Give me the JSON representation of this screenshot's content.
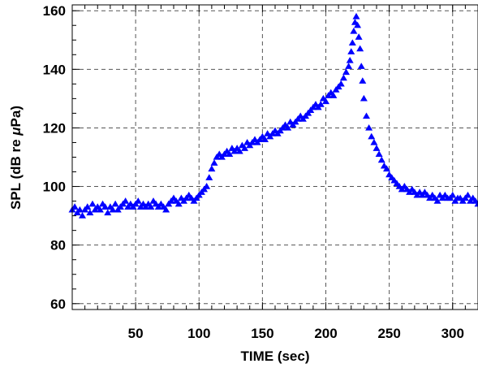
{
  "chart_data": {
    "type": "scatter",
    "title": "",
    "xlabel": "TIME (sec)",
    "ylabel_parts": {
      "prefix": "SPL (dB re ",
      "mu": "μ",
      "suffix": "Pa)"
    },
    "xlim": [
      0,
      320
    ],
    "ylim": [
      58,
      162
    ],
    "x_ticks": [
      50,
      100,
      150,
      200,
      250,
      300
    ],
    "y_ticks": [
      60,
      80,
      100,
      120,
      140,
      160
    ],
    "grid": true,
    "marker": "triangle",
    "marker_color": "#0000ff",
    "series": [
      {
        "x": [
          0,
          2,
          4,
          6,
          8,
          10,
          12,
          14,
          16,
          18,
          20,
          22,
          24,
          26,
          28,
          30,
          32,
          34,
          36,
          38,
          40,
          42,
          44,
          46,
          48,
          50,
          52,
          54,
          56,
          58,
          60,
          62,
          64,
          66,
          68,
          70,
          72,
          74,
          76,
          78,
          80,
          82,
          84,
          86,
          88,
          90,
          92,
          94,
          96,
          98,
          100,
          102,
          104,
          106,
          108,
          110,
          112,
          114,
          116,
          118,
          120,
          122,
          124,
          126,
          128,
          130,
          132,
          134,
          136,
          138,
          140,
          142,
          144,
          146,
          148,
          150,
          152,
          154,
          156,
          158,
          160,
          162,
          164,
          166,
          168,
          170,
          172,
          174,
          176,
          178,
          180,
          182,
          184,
          186,
          188,
          190,
          192,
          194,
          196,
          198,
          200,
          202,
          204,
          206,
          208,
          210,
          212,
          214,
          216,
          218,
          219,
          220,
          221,
          222,
          223,
          224,
          225,
          226,
          227,
          228,
          229,
          230,
          232,
          234,
          236,
          238,
          240,
          242,
          244,
          246,
          248,
          250,
          252,
          254,
          256,
          258,
          260,
          262,
          264,
          266,
          268,
          270,
          272,
          274,
          276,
          278,
          280,
          282,
          284,
          286,
          288,
          290,
          292,
          294,
          296,
          298,
          300,
          302,
          304,
          306,
          308,
          310,
          312,
          314,
          316,
          318,
          320
        ],
        "y": [
          92,
          93,
          91,
          92,
          90,
          92,
          93,
          91,
          94,
          92,
          93,
          92,
          94,
          93,
          91,
          93,
          92,
          94,
          92,
          93,
          94,
          95,
          93,
          94,
          93,
          94,
          95,
          93,
          94,
          93,
          94,
          93,
          95,
          94,
          93,
          94,
          93,
          92,
          94,
          95,
          96,
          95,
          94,
          96,
          95,
          96,
          97,
          96,
          95,
          96,
          97,
          98,
          99,
          100,
          103,
          106,
          108,
          110,
          111,
          110,
          111,
          112,
          111,
          113,
          112,
          113,
          112,
          114,
          113,
          115,
          114,
          115,
          116,
          115,
          116,
          117,
          116,
          118,
          117,
          118,
          119,
          118,
          119,
          120,
          121,
          120,
          122,
          121,
          122,
          123,
          124,
          123,
          124,
          125,
          126,
          127,
          128,
          127,
          128,
          130,
          129,
          131,
          132,
          131,
          133,
          134,
          135,
          137,
          139,
          141,
          143,
          146,
          149,
          153,
          156,
          158,
          155,
          151,
          147,
          141,
          136,
          130,
          124,
          120,
          117,
          115,
          113,
          111,
          109,
          107,
          106,
          104,
          103,
          102,
          101,
          100,
          99,
          100,
          99,
          98,
          99,
          98,
          97,
          98,
          97,
          98,
          97,
          96,
          97,
          96,
          95,
          97,
          96,
          97,
          96,
          96,
          97,
          95,
          96,
          96,
          95,
          96,
          97,
          95,
          96,
          95,
          94
        ]
      }
    ]
  }
}
